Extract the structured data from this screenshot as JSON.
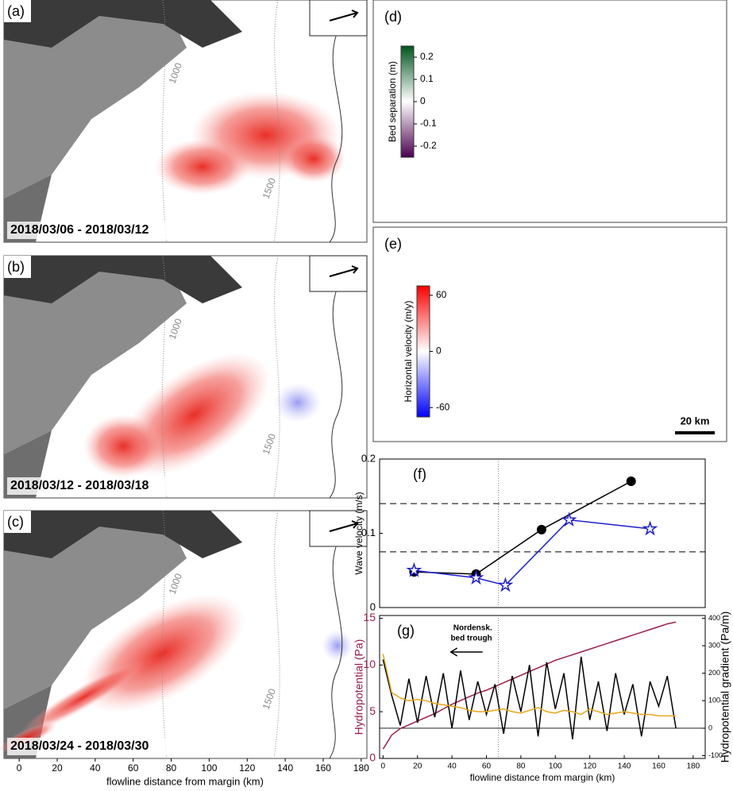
{
  "maps": [
    {
      "label": "(a)",
      "dates": "2018/03/06 - 2018/03/12",
      "contours": [
        "1000",
        "1500"
      ]
    },
    {
      "label": "(b)",
      "dates": "2018/03/12 - 2018/03/18",
      "contours": [
        "1000",
        "1500"
      ]
    },
    {
      "label": "(c)",
      "dates": "2018/03/24 - 2018/03/30",
      "contours": [
        "1000",
        "1500"
      ]
    }
  ],
  "map_axis": {
    "xlabel": "flowline distance from margin (km)",
    "xlim": [
      -8,
      183
    ],
    "xticks": [
      0,
      20,
      40,
      60,
      80,
      100,
      120,
      140,
      160,
      180
    ]
  },
  "panel_d": {
    "label": "(d)",
    "colorbar_label": "Bed separation (m)",
    "clim": [
      -0.25,
      0.25
    ],
    "cticks": [
      0.2,
      0.1,
      0,
      -0.1,
      -0.2
    ]
  },
  "panel_e": {
    "label": "(e)",
    "colorbar_label": "Horizontal velocity (m/y)",
    "clim": [
      -70,
      70
    ],
    "cticks": [
      60,
      0,
      -60
    ],
    "scale_bar": "20 km"
  },
  "chart_data": [
    {
      "type": "line",
      "label": "(f)",
      "ylabel": "Wave velocity (m/s)",
      "xlim": [
        -2,
        187
      ],
      "ylim": [
        0,
        0.2
      ],
      "yticks": [
        0,
        0.1,
        0.2
      ],
      "hlines": [
        0.14,
        0.075
      ],
      "vline": 67,
      "series": [
        {
          "color": "#000000",
          "marker": "circle",
          "x": [
            18,
            54,
            92,
            144
          ],
          "values": [
            0.048,
            0.045,
            0.105,
            0.17
          ]
        },
        {
          "color": "#1f1fd0",
          "marker": "star",
          "x": [
            18,
            54,
            71,
            108,
            155
          ],
          "values": [
            0.05,
            0.04,
            0.03,
            0.118,
            0.106
          ]
        }
      ]
    },
    {
      "type": "line",
      "label": "(g)",
      "xlabel": "flowline distance from margin (km)",
      "ylabel": "Hydropotential (Pa)",
      "y2label": "Hydropotential gradient (Pa/m)",
      "annotation": [
        "Nordensk.",
        "bed trough"
      ],
      "vline": 67,
      "xlim": [
        -2,
        187
      ],
      "xticks": [
        0,
        20,
        40,
        60,
        80,
        100,
        120,
        140,
        160,
        180
      ],
      "ylim": [
        0,
        15.3
      ],
      "yticks": [
        0,
        5,
        10,
        15
      ],
      "y2lim": [
        -110,
        410
      ],
      "y2ticks": [
        -100,
        0,
        100,
        200,
        300,
        400
      ],
      "x": [
        0,
        5,
        10,
        15,
        20,
        25,
        30,
        35,
        40,
        45,
        50,
        55,
        60,
        65,
        70,
        75,
        80,
        85,
        90,
        95,
        100,
        105,
        110,
        115,
        120,
        125,
        130,
        135,
        140,
        145,
        150,
        155,
        160,
        165,
        170
      ],
      "series": [
        {
          "color": "#9c1f46",
          "values": [
            1.0,
            2.5,
            3.2,
            3.6,
            4.0,
            4.4,
            4.8,
            5.3,
            5.8,
            6.2,
            6.6,
            7.0,
            7.3,
            7.7,
            8.1,
            8.5,
            8.9,
            9.3,
            9.7,
            10.1,
            10.5,
            10.8,
            11.1,
            11.4,
            11.7,
            12.0,
            12.3,
            12.6,
            12.9,
            13.2,
            13.5,
            13.8,
            14.1,
            14.4,
            14.6
          ]
        },
        {
          "color": "#000000",
          "axis": "y2",
          "values": [
            250,
            120,
            10,
            180,
            20,
            190,
            40,
            200,
            0,
            210,
            30,
            170,
            50,
            160,
            -20,
            190,
            60,
            230,
            -30,
            240,
            70,
            200,
            -40,
            260,
            30,
            170,
            -10,
            200,
            50,
            160,
            -30,
            170,
            80,
            190,
            0
          ]
        },
        {
          "color": "#e6a817",
          "axis": "y2",
          "values": [
            270,
            130,
            110,
            100,
            105,
            100,
            90,
            85,
            80,
            75,
            65,
            60,
            60,
            65,
            70,
            60,
            55,
            65,
            75,
            60,
            55,
            65,
            60,
            50,
            70,
            60,
            50,
            55,
            60,
            55,
            50,
            50,
            45,
            45,
            45
          ]
        }
      ]
    }
  ]
}
